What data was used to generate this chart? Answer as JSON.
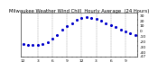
{
  "title": "Milwaukee Weather Wind Chill  Hourly Average  (24 Hours)",
  "title_fontsize": 3.8,
  "x": [
    0,
    1,
    2,
    3,
    4,
    5,
    6,
    7,
    8,
    9,
    10,
    11,
    12,
    13,
    14,
    15,
    16,
    17,
    18,
    19,
    20,
    21,
    22,
    23
  ],
  "y": [
    -25,
    -27,
    -28,
    -28,
    -26,
    -22,
    -15,
    -8,
    2,
    8,
    14,
    20,
    23,
    25,
    24,
    22,
    18,
    14,
    10,
    6,
    2,
    -2,
    -6,
    -8
  ],
  "dot_color": "#0000cc",
  "dot_size": 1.5,
  "bg_color": "#ffffff",
  "grid_color": "#888888",
  "yticks": [
    30,
    20,
    10,
    0,
    -10,
    -20,
    -30,
    -40,
    -47
  ],
  "ylim": [
    -50,
    33
  ],
  "xlim": [
    -0.5,
    23.5
  ],
  "xtick_fontsize": 3.2,
  "ytick_fontsize": 3.2,
  "vgrid_positions": [
    3,
    6,
    9,
    12,
    15,
    18,
    21
  ]
}
